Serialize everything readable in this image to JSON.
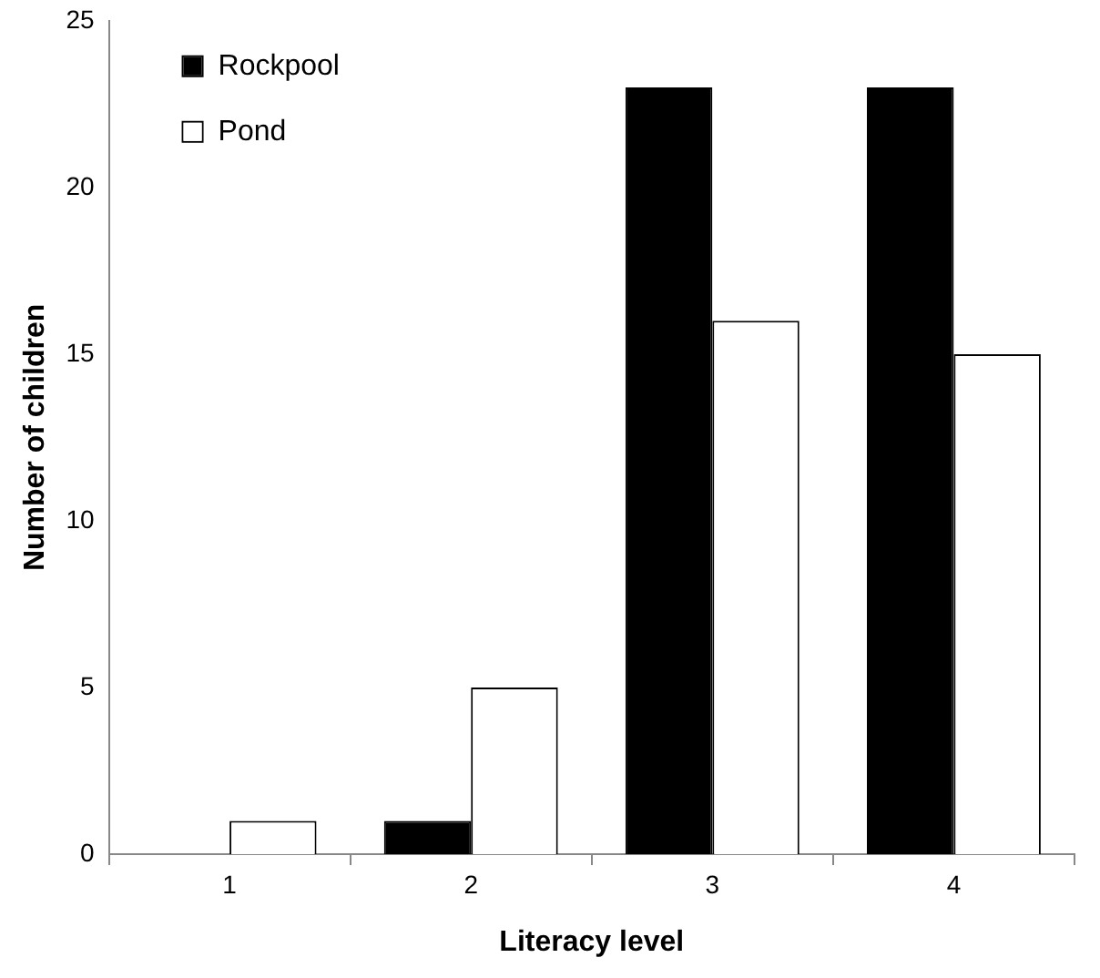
{
  "chart_data": {
    "type": "bar",
    "xlabel": "Literacy level",
    "ylabel": "Number of children",
    "categories": [
      "1",
      "2",
      "3",
      "4"
    ],
    "series": [
      {
        "name": "Rockpool",
        "color": "#000000",
        "values": [
          0,
          1,
          23,
          23
        ]
      },
      {
        "name": "Pond",
        "color": "#ffffff",
        "values": [
          1,
          5,
          16,
          15
        ]
      }
    ],
    "ylim": [
      0,
      25
    ],
    "yticks": [
      0,
      5,
      10,
      15,
      20,
      25
    ],
    "grid": false,
    "legend": "top left"
  }
}
